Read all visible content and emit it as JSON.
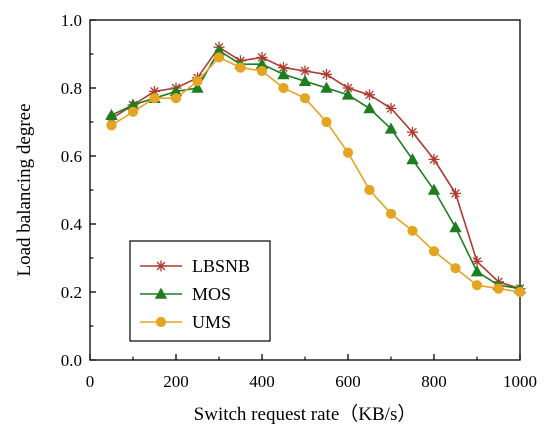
{
  "chart_data": {
    "type": "line",
    "title": "",
    "xlabel": "Switch request rate（KB/s）",
    "ylabel": "Load balancing degree",
    "xlim": [
      0,
      1000
    ],
    "ylim": [
      0.0,
      1.0
    ],
    "x_ticks": [
      0,
      200,
      400,
      600,
      800,
      1000
    ],
    "x_tick_labels": [
      "0",
      "200",
      "400",
      "600",
      "800",
      "1000"
    ],
    "y_ticks": [
      0.0,
      0.2,
      0.4,
      0.6,
      0.8,
      1.0
    ],
    "y_tick_labels": [
      "0.0",
      "0.2",
      "0.4",
      "0.6",
      "0.8",
      "1.0"
    ],
    "grid": false,
    "legend_position": "bottom-left",
    "x": [
      50,
      100,
      150,
      200,
      250,
      300,
      350,
      400,
      450,
      500,
      550,
      600,
      650,
      700,
      750,
      800,
      850,
      900,
      950,
      1000
    ],
    "series": [
      {
        "name": "LBSNB",
        "color": "#b03a2e",
        "marker": "asterisk",
        "values": [
          0.71,
          0.75,
          0.79,
          0.8,
          0.83,
          0.92,
          0.88,
          0.89,
          0.86,
          0.85,
          0.84,
          0.8,
          0.78,
          0.74,
          0.67,
          0.59,
          0.49,
          0.29,
          0.23,
          0.21
        ]
      },
      {
        "name": "MOS",
        "color": "#1e7d1e",
        "marker": "triangle",
        "values": [
          0.72,
          0.75,
          0.77,
          0.79,
          0.8,
          0.91,
          0.87,
          0.87,
          0.84,
          0.82,
          0.8,
          0.78,
          0.74,
          0.68,
          0.59,
          0.5,
          0.39,
          0.26,
          0.22,
          0.21
        ]
      },
      {
        "name": "UMS",
        "color": "#e5a421",
        "marker": "circle",
        "values": [
          0.69,
          0.73,
          0.77,
          0.77,
          0.82,
          0.89,
          0.86,
          0.85,
          0.8,
          0.77,
          0.7,
          0.61,
          0.5,
          0.43,
          0.38,
          0.32,
          0.27,
          0.22,
          0.21,
          0.2
        ]
      }
    ]
  }
}
